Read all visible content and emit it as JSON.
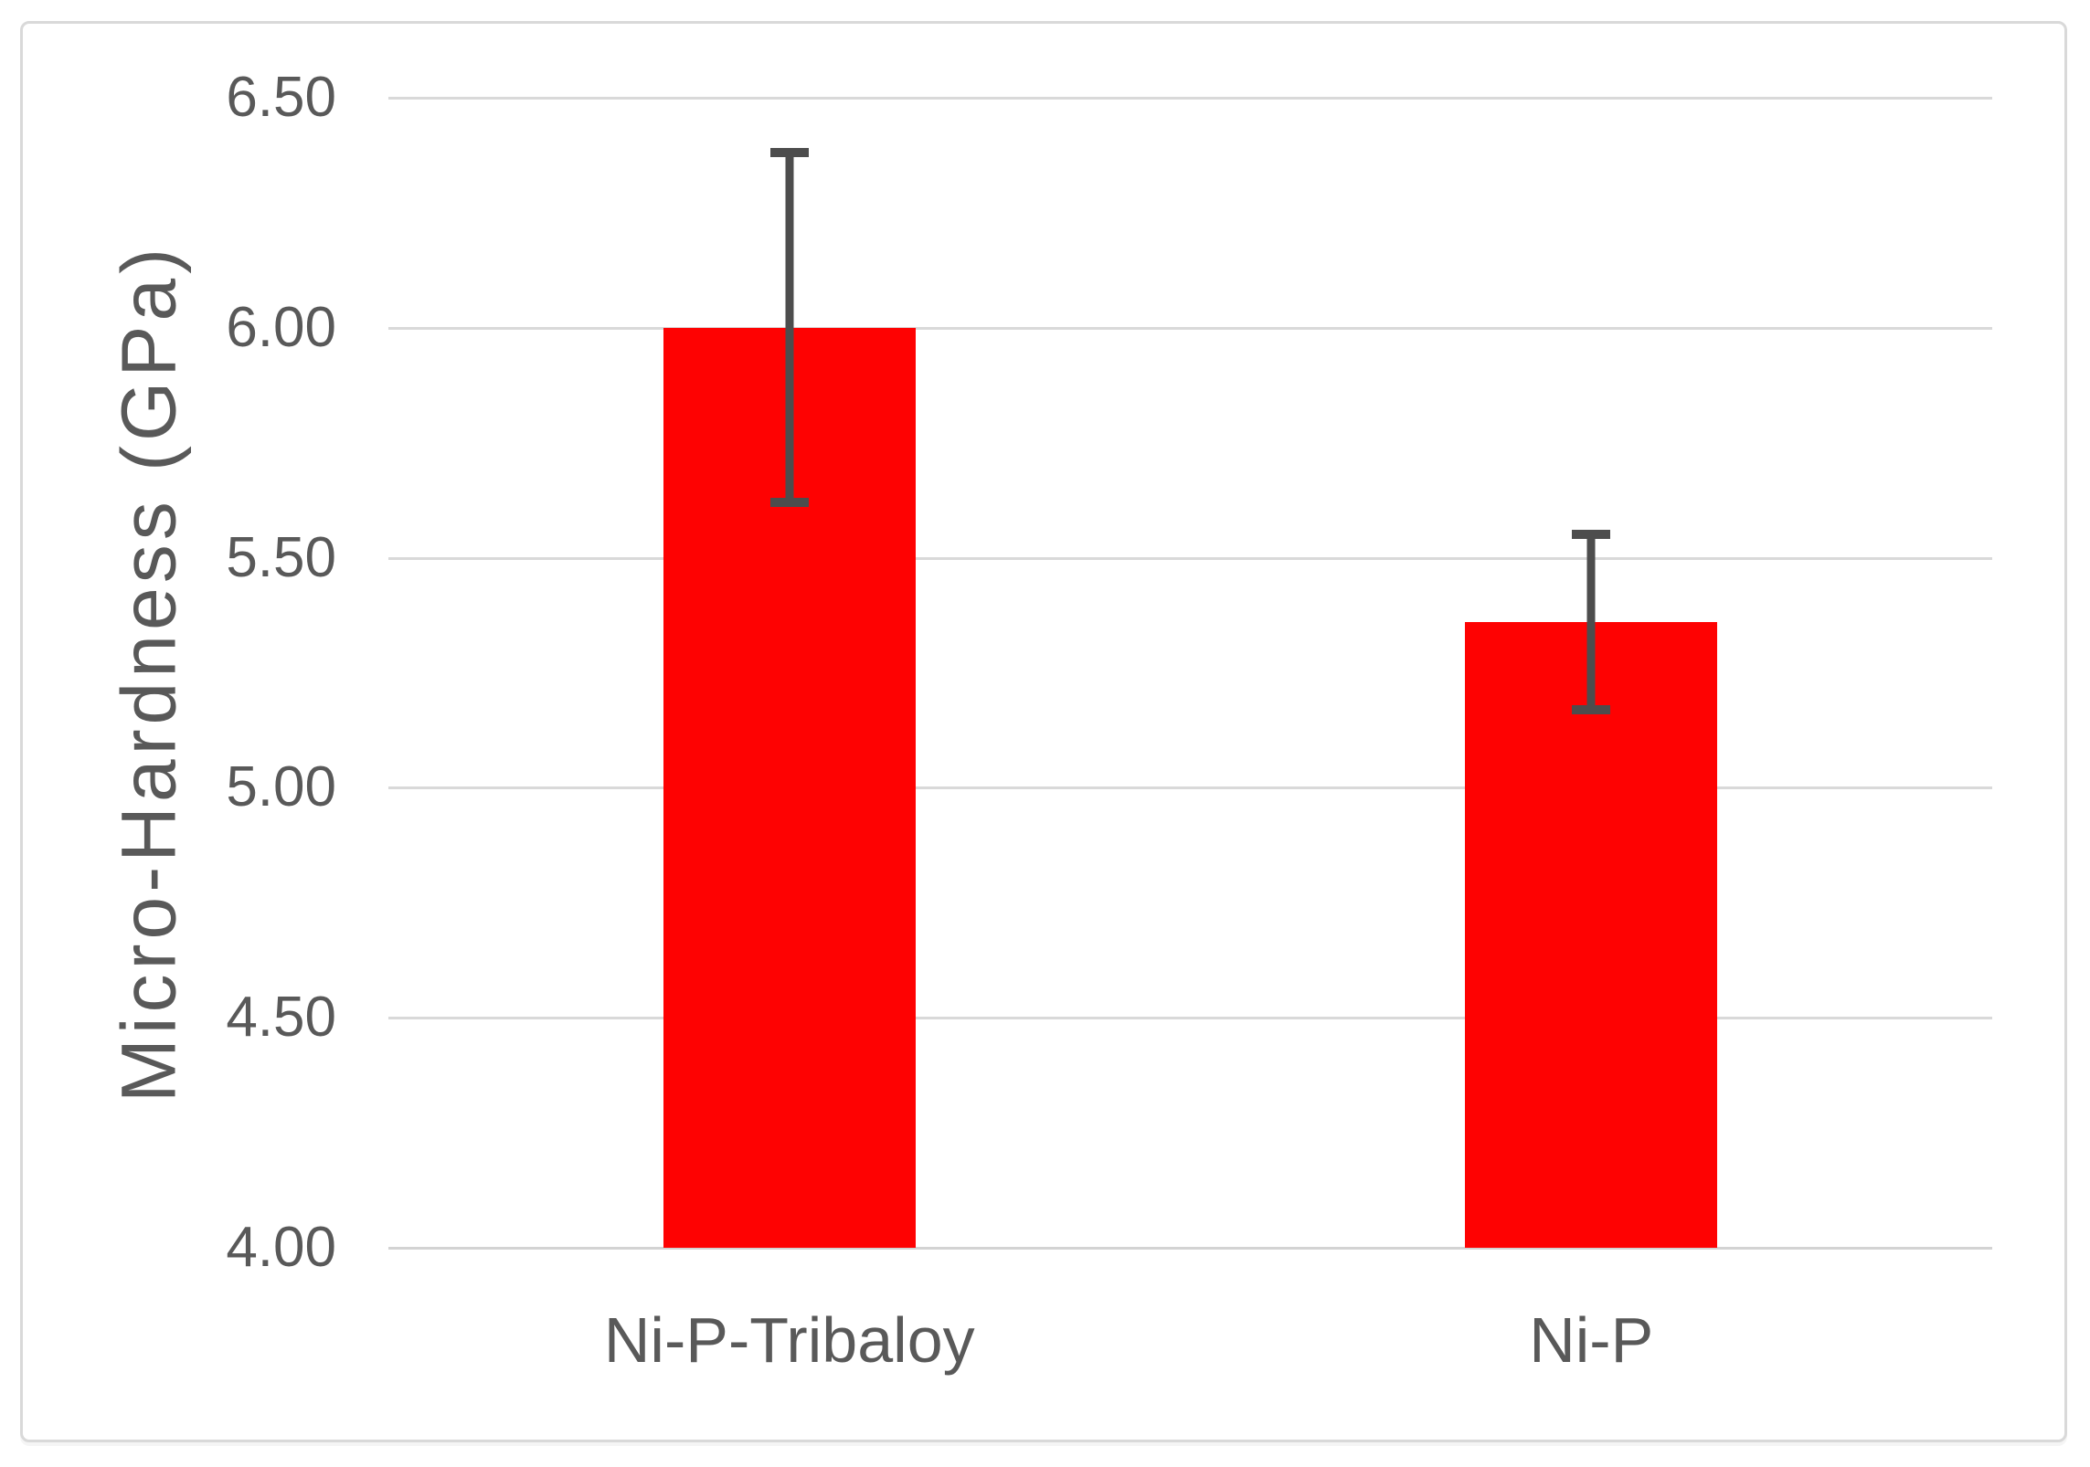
{
  "chart_data": {
    "type": "bar",
    "title": "",
    "categories": [
      "Ni-P-Tribaloy",
      "Ni-P"
    ],
    "values": [
      6.0,
      5.36
    ],
    "error_bars": {
      "plus": [
        0.38,
        0.19
      ],
      "minus": [
        0.38,
        0.19
      ]
    },
    "series": [
      {
        "name": "Micro-Hardness",
        "values": [
          6.0,
          5.36
        ],
        "error_upper_points": [
          6.38,
          5.55
        ],
        "error_lower_points": [
          5.62,
          5.17
        ]
      }
    ],
    "xlabel": "",
    "ylabel": "Micro-Hardness (GPa)",
    "ylim": [
      4.0,
      6.5
    ],
    "ytick_step": 0.5,
    "ytick_labels": [
      "4.00",
      "4.50",
      "5.00",
      "5.50",
      "6.00",
      "6.50"
    ],
    "grid": true,
    "legend": "none",
    "colors": {
      "bar": "#fe0202",
      "error_bar": "#4d4d4d",
      "gridline": "#d9d9d9",
      "text": "#595959",
      "frame_border": "#d9d9d9",
      "background": "#ffffff"
    }
  }
}
